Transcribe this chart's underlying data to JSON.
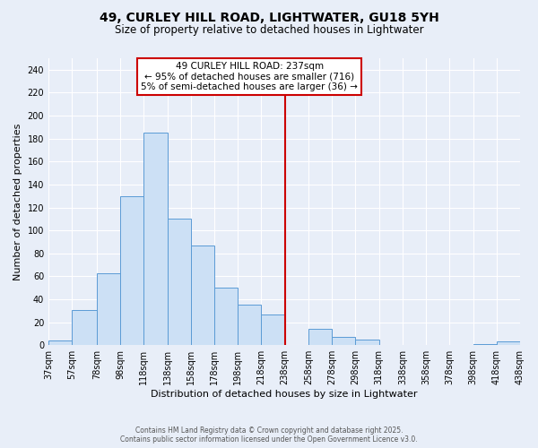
{
  "title": "49, CURLEY HILL ROAD, LIGHTWATER, GU18 5YH",
  "subtitle": "Size of property relative to detached houses in Lightwater",
  "xlabel": "Distribution of detached houses by size in Lightwater",
  "ylabel": "Number of detached properties",
  "bar_color": "#cce0f5",
  "bar_edge_color": "#5b9bd5",
  "background_color": "#e8eef8",
  "grid_color": "#ffffff",
  "annotation_box_color": "#ffffff",
  "annotation_box_edge_color": "#cc0000",
  "vline_color": "#cc0000",
  "vline_x": 238,
  "annotation_title": "49 CURLEY HILL ROAD: 237sqm",
  "annotation_line1": "← 95% of detached houses are smaller (716)",
  "annotation_line2": "5% of semi-detached houses are larger (36) →",
  "footer_line1": "Contains HM Land Registry data © Crown copyright and database right 2025.",
  "footer_line2": "Contains public sector information licensed under the Open Government Licence v3.0.",
  "bin_edges": [
    37,
    57,
    78,
    98,
    118,
    138,
    158,
    178,
    198,
    218,
    238,
    258,
    278,
    298,
    318,
    338,
    358,
    378,
    398,
    418,
    438
  ],
  "bin_labels": [
    "37sqm",
    "57sqm",
    "78sqm",
    "98sqm",
    "118sqm",
    "138sqm",
    "158sqm",
    "178sqm",
    "198sqm",
    "218sqm",
    "238sqm",
    "258sqm",
    "278sqm",
    "298sqm",
    "318sqm",
    "338sqm",
    "358sqm",
    "378sqm",
    "398sqm",
    "418sqm",
    "438sqm"
  ],
  "counts": [
    4,
    31,
    63,
    130,
    185,
    110,
    87,
    50,
    35,
    27,
    0,
    14,
    7,
    5,
    0,
    0,
    0,
    0,
    1,
    3
  ],
  "ylim": [
    0,
    250
  ],
  "yticks": [
    0,
    20,
    40,
    60,
    80,
    100,
    120,
    140,
    160,
    180,
    200,
    220,
    240
  ],
  "title_fontsize": 10,
  "subtitle_fontsize": 8.5,
  "axis_label_fontsize": 8,
  "tick_fontsize": 7,
  "annotation_fontsize": 7.5,
  "footer_fontsize": 5.5
}
